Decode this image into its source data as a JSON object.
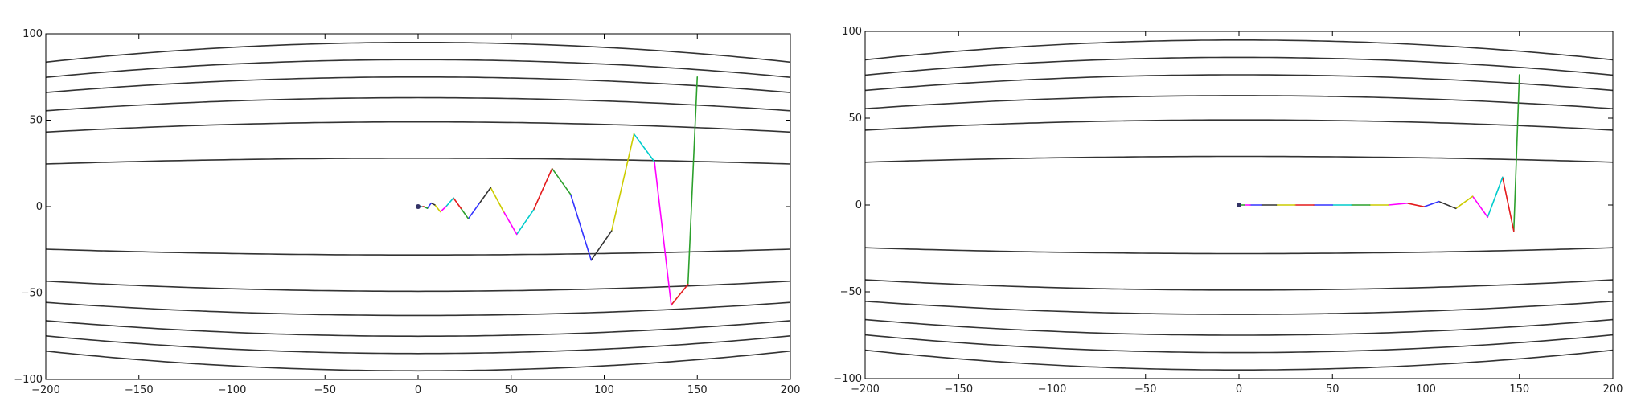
{
  "chart_data": [
    {
      "type": "line",
      "title": "",
      "xlabel": "",
      "ylabel": "",
      "xlim": [
        -200,
        200
      ],
      "ylim": [
        -100,
        100
      ],
      "xticks": [
        -200,
        -150,
        -100,
        -50,
        0,
        50,
        100,
        150,
        200
      ],
      "yticks": [
        -100,
        -50,
        0,
        50,
        100
      ],
      "grid": false,
      "contour_levels_y0": [
        28,
        49,
        63,
        75,
        85,
        95
      ],
      "contour_curvature": 0.3,
      "series": [
        {
          "x": [
            150,
            145,
            136,
            127,
            116,
            104,
            93,
            82,
            72,
            62,
            53,
            46,
            39,
            33,
            27,
            23,
            19,
            15,
            12,
            9,
            7,
            5,
            3,
            2,
            1,
            0
          ],
          "y": [
            75,
            -45,
            -57,
            26,
            42,
            -14,
            -31,
            7,
            22,
            -2,
            -16,
            -3,
            11,
            2,
            -7,
            -1,
            5,
            0,
            -3,
            1,
            2,
            -1,
            0,
            0,
            0,
            0
          ]
        }
      ],
      "segment_colors": [
        "#2ca02c",
        "#e41a1c",
        "#ff00ff",
        "#00cccc",
        "#cccc00",
        "#333333",
        "#3333ff",
        "#2ca02c",
        "#e41a1c",
        "#00cccc",
        "#ff00ff",
        "#cccc00",
        "#333333",
        "#3333ff",
        "#2ca02c",
        "#e41a1c",
        "#00cccc",
        "#ff00ff",
        "#cccc00",
        "#333333",
        "#3333ff",
        "#2ca02c",
        "#e41a1c",
        "#00cccc",
        "#333333"
      ],
      "start_marker": [
        0,
        0
      ]
    },
    {
      "type": "line",
      "title": "",
      "xlabel": "",
      "ylabel": "",
      "xlim": [
        -200,
        200
      ],
      "ylim": [
        -100,
        100
      ],
      "xticks": [
        -200,
        -150,
        -100,
        -50,
        0,
        50,
        100,
        150,
        200
      ],
      "yticks": [
        -100,
        -50,
        0,
        50,
        100
      ],
      "grid": false,
      "contour_levels_y0": [
        28,
        49,
        63,
        75,
        85,
        95
      ],
      "contour_curvature": 0.3,
      "series": [
        {
          "x": [
            150,
            147,
            141,
            133,
            125,
            116,
            107,
            99,
            90,
            80,
            70,
            60,
            50,
            40,
            30,
            20,
            12,
            6,
            3,
            1,
            0
          ],
          "y": [
            75,
            -15,
            16,
            -7,
            5,
            -2,
            2,
            -1,
            1,
            0,
            0,
            0,
            0,
            0,
            0,
            0,
            0,
            0,
            0,
            0,
            0
          ]
        }
      ],
      "segment_colors": [
        "#2ca02c",
        "#e41a1c",
        "#00cccc",
        "#ff00ff",
        "#cccc00",
        "#333333",
        "#3333ff",
        "#e41a1c",
        "#ff00ff",
        "#cccc00",
        "#2ca02c",
        "#00cccc",
        "#3333ff",
        "#e41a1c",
        "#cccc00",
        "#333333",
        "#3333ff",
        "#ff00ff",
        "#2ca02c",
        "#333333"
      ],
      "start_marker": [
        0,
        0
      ]
    }
  ]
}
